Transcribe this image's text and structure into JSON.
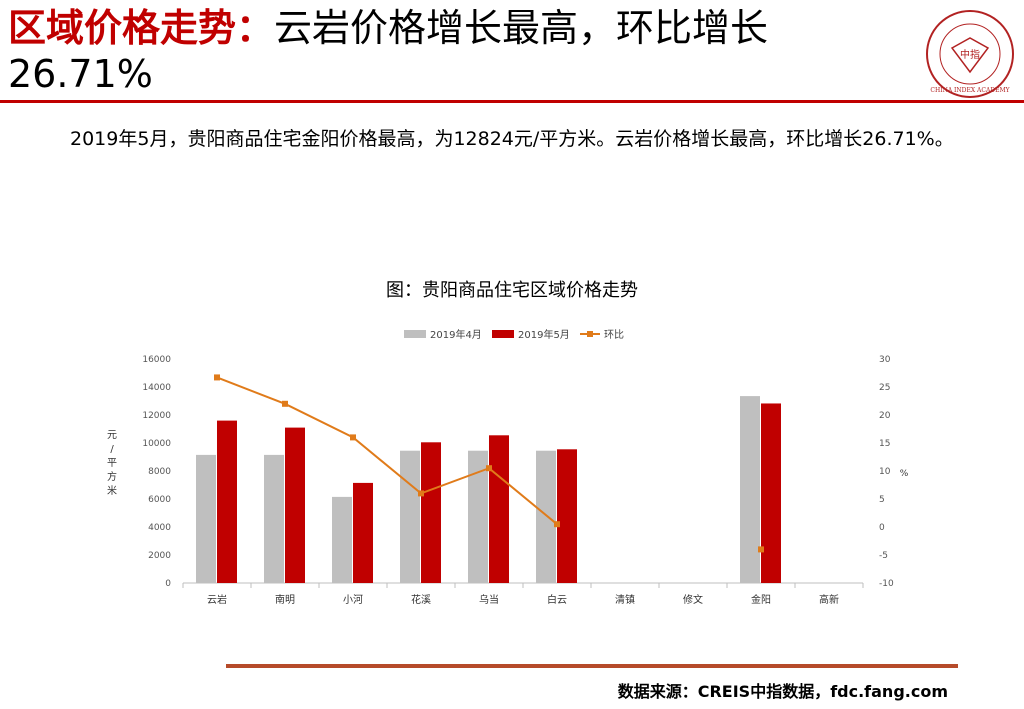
{
  "header": {
    "title_red": "区域价格走势：",
    "title_rest": "云岩价格增长最高，环比增长",
    "title_line2": "26.71%",
    "logo_text": "中指",
    "logo_ring_text": "CHINA INDEX ACADEMY"
  },
  "summary": "2019年5月，贵阳商品住宅金阳价格最高，为12824元/平方米。云岩价格增长最高，环比增长26.71%。",
  "source": "数据来源：CREIS中指数据，fdc.fang.com",
  "colors": {
    "accent": "#c00000",
    "apr": "#bfbfbf",
    "may": "#c00000",
    "line": "#e07b1a",
    "rule": "#b64b2a"
  },
  "chart_data": {
    "type": "bar",
    "title": "图：贵阳商品住宅区域价格走势",
    "categories": [
      "云岩",
      "南明",
      "小河",
      "花溪",
      "乌当",
      "白云",
      "清镇",
      "修文",
      "金阳",
      "高新"
    ],
    "series": [
      {
        "name": "2019年4月",
        "type": "bar",
        "axis": "left",
        "values": [
          9150,
          9150,
          6150,
          9450,
          9450,
          9450,
          null,
          null,
          13350,
          null
        ]
      },
      {
        "name": "2019年5月",
        "type": "bar",
        "axis": "left",
        "values": [
          11600,
          11100,
          7150,
          10050,
          10550,
          9550,
          null,
          null,
          12824,
          null
        ]
      },
      {
        "name": "环比",
        "type": "line",
        "axis": "right",
        "values": [
          26.71,
          22,
          16,
          6,
          10.5,
          0.5,
          null,
          null,
          -4,
          null
        ]
      }
    ],
    "ylabel": "元/平方米",
    "ylim": [
      0,
      16000
    ],
    "yticks": [
      0,
      2000,
      4000,
      6000,
      8000,
      10000,
      12000,
      14000,
      16000
    ],
    "y2label": "%",
    "y2lim": [
      -10,
      30
    ],
    "y2ticks": [
      -10,
      -5,
      0,
      5,
      10,
      15,
      20,
      25,
      30
    ],
    "legend_position": "top",
    "grid": false
  }
}
